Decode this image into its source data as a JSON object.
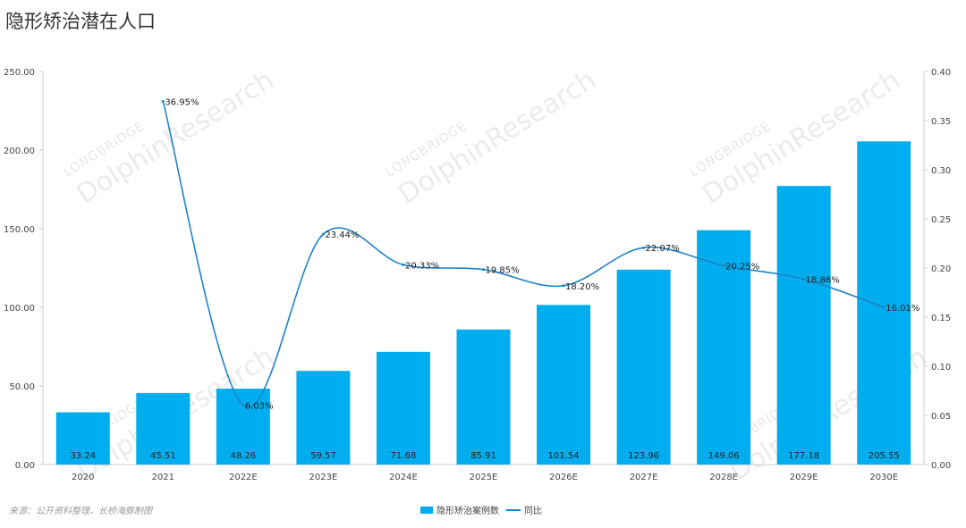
{
  "title": "隐形矫治潜在人口",
  "source": "来源：公开资料整理，长桥海豚制图",
  "watermark": {
    "line1": "LONGBRIDGE",
    "line2": "DolphinResearch"
  },
  "colors": {
    "bar": "#00AEEF",
    "line": "#1F82C7",
    "axis": "#cccccc"
  },
  "chart_data": {
    "type": "bar",
    "categories": [
      "2020",
      "2021",
      "2022E",
      "2023E",
      "2024E",
      "2025E",
      "2026E",
      "2027E",
      "2028E",
      "2029E",
      "2030E"
    ],
    "series": [
      {
        "name": "隐形矫治案例数",
        "type": "bar",
        "axis": "left",
        "values": [
          33.24,
          45.51,
          48.26,
          59.57,
          71.68,
          85.91,
          101.54,
          123.96,
          149.06,
          177.18,
          205.55
        ],
        "labels": [
          "33.24",
          "45.51",
          "48.26",
          "59.57",
          "71.68",
          "85.91",
          "101.54",
          "123.96",
          "149.06",
          "177.18",
          "205.55"
        ]
      },
      {
        "name": "同比",
        "type": "line",
        "axis": "right",
        "smooth": true,
        "values": [
          null,
          0.3695,
          0.0603,
          0.2344,
          0.2033,
          0.1985,
          0.182,
          0.2207,
          0.2025,
          0.1886,
          0.1601
        ],
        "labels": [
          "",
          "36.95%",
          "6.03%",
          "23.44%",
          "20.33%",
          "19.85%",
          "18.20%",
          "22.07%",
          "20.25%",
          "18.86%",
          "16.01%"
        ]
      }
    ],
    "left_axis": {
      "ylim": [
        0,
        250
      ],
      "ticks": [
        "0.00",
        "50.00",
        "100.00",
        "150.00",
        "200.00",
        "250.00"
      ]
    },
    "right_axis": {
      "ylim": [
        0,
        0.4
      ],
      "ticks": [
        "0.00",
        "0.05",
        "0.10",
        "0.15",
        "0.20",
        "0.25",
        "0.30",
        "0.35",
        "0.40"
      ]
    },
    "legend": {
      "position": "bottom-center"
    }
  }
}
